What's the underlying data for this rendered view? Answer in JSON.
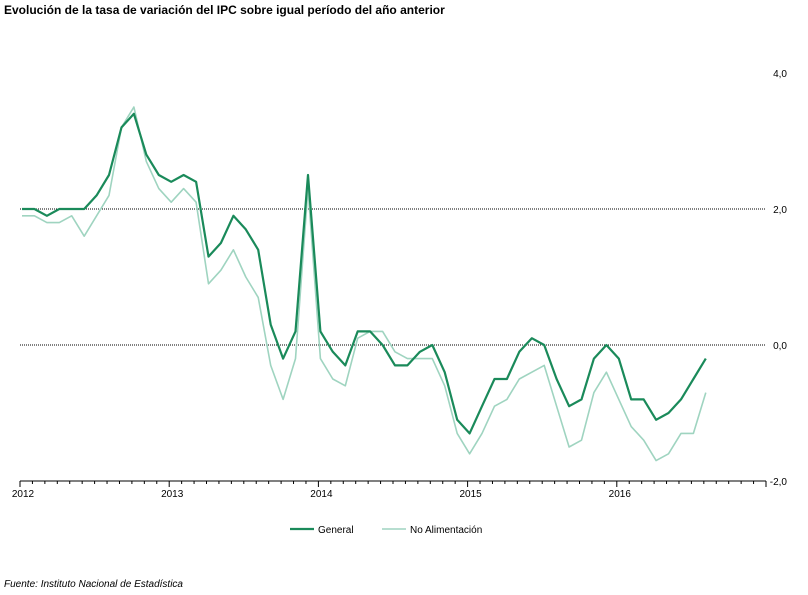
{
  "title": "Evolución de la tasa de variación del IPC sobre igual período del año anterior",
  "source": "Fuente: Instituto Nacional de Estadística",
  "chart_data": {
    "type": "line",
    "title": "Evolución de la tasa de variación del IPC sobre igual período del año anterior",
    "xlabel": "",
    "ylabel": "",
    "ylim": [
      -2.0,
      4.0
    ],
    "yticks": [
      -2.0,
      0.0,
      2.0,
      4.0
    ],
    "ytick_labels": [
      "-2,0",
      "0,0",
      "2,0",
      "4,0"
    ],
    "reference_lines": [
      0.0,
      2.0
    ],
    "x_start": "2012-01",
    "x_end": "2016-12",
    "xtick_labels": [
      "2012",
      "2013",
      "2014",
      "2015",
      "2016"
    ],
    "legend_position": "bottom-center",
    "grid": false,
    "series": [
      {
        "name": "General",
        "color": "#1a8a5a",
        "values": [
          2.0,
          2.0,
          1.9,
          2.0,
          2.0,
          2.0,
          2.2,
          2.5,
          3.2,
          3.4,
          2.8,
          2.5,
          2.4,
          2.5,
          2.4,
          1.3,
          1.5,
          1.9,
          1.7,
          1.4,
          0.3,
          -0.2,
          0.2,
          2.5,
          0.2,
          -0.1,
          -0.3,
          0.2,
          0.2,
          0.0,
          -0.3,
          -0.3,
          -0.1,
          0.0,
          -0.4,
          -1.1,
          -1.3,
          -0.9,
          -0.5,
          -0.5,
          -0.1,
          0.1,
          0.0,
          -0.5,
          -0.9,
          -0.8,
          -0.2,
          0.0,
          -0.2,
          -0.8,
          -0.8,
          -1.1,
          -1.0,
          -0.8,
          -0.5,
          -0.2
        ]
      },
      {
        "name": "No Alimentación",
        "color": "#9fd4c0",
        "values": [
          1.9,
          1.9,
          1.8,
          1.8,
          1.9,
          1.6,
          1.9,
          2.2,
          3.2,
          3.5,
          2.7,
          2.3,
          2.1,
          2.3,
          2.1,
          0.9,
          1.1,
          1.4,
          1.0,
          0.7,
          -0.3,
          -0.8,
          -0.2,
          2.3,
          -0.2,
          -0.5,
          -0.6,
          0.1,
          0.2,
          0.2,
          -0.1,
          -0.2,
          -0.2,
          -0.2,
          -0.6,
          -1.3,
          -1.6,
          -1.3,
          -0.9,
          -0.8,
          -0.5,
          -0.4,
          -0.3,
          -0.9,
          -1.5,
          -1.4,
          -0.7,
          -0.4,
          -0.8,
          -1.2,
          -1.4,
          -1.7,
          -1.6,
          -1.3,
          -1.3,
          -0.7
        ]
      }
    ]
  }
}
